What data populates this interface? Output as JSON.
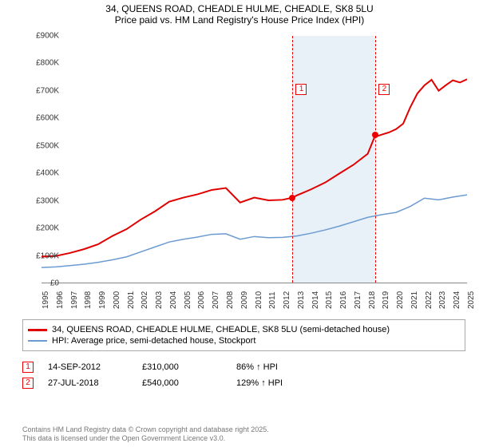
{
  "title_line1": "34, QUEENS ROAD, CHEADLE HULME, CHEADLE, SK8 5LU",
  "title_line2": "Price paid vs. HM Land Registry's House Price Index (HPI)",
  "chart": {
    "type": "line",
    "x_start_year": 1995,
    "x_end_year": 2025,
    "x_tick_years": [
      1995,
      1996,
      1997,
      1998,
      1999,
      2000,
      2001,
      2002,
      2003,
      2004,
      2005,
      2006,
      2007,
      2008,
      2009,
      2010,
      2011,
      2012,
      2013,
      2014,
      2015,
      2016,
      2017,
      2018,
      2019,
      2020,
      2021,
      2022,
      2023,
      2024,
      2025
    ],
    "y_min": 0,
    "y_max": 900,
    "y_ticks": [
      0,
      100,
      200,
      300,
      400,
      500,
      600,
      700,
      800,
      900
    ],
    "y_tick_labels": [
      "£0",
      "£100K",
      "£200K",
      "£300K",
      "£400K",
      "£500K",
      "£600K",
      "£700K",
      "£800K",
      "£900K"
    ],
    "background_color": "#ffffff",
    "shade_color": "#e8f0f8",
    "shade_from_year": 2012.7,
    "shade_to_year": 2018.55,
    "series": [
      {
        "id": "price_paid",
        "color": "#e00000",
        "width": 2,
        "label": "34, QUEENS ROAD, CHEADLE HULME, CHEADLE, SK8 5LU (semi-detached house)",
        "points": [
          [
            1995,
            95
          ],
          [
            1996,
            97
          ],
          [
            1997,
            108
          ],
          [
            1998,
            122
          ],
          [
            1999,
            140
          ],
          [
            2000,
            170
          ],
          [
            2001,
            195
          ],
          [
            2002,
            230
          ],
          [
            2003,
            260
          ],
          [
            2004,
            295
          ],
          [
            2005,
            310
          ],
          [
            2006,
            322
          ],
          [
            2007,
            338
          ],
          [
            2008,
            345
          ],
          [
            2009,
            292
          ],
          [
            2010,
            310
          ],
          [
            2011,
            300
          ],
          [
            2012,
            302
          ],
          [
            2012.7,
            310
          ],
          [
            2013,
            318
          ],
          [
            2014,
            340
          ],
          [
            2015,
            365
          ],
          [
            2016,
            398
          ],
          [
            2017,
            430
          ],
          [
            2018,
            470
          ],
          [
            2018.55,
            540
          ],
          [
            2018.7,
            535
          ],
          [
            2019,
            540
          ],
          [
            2019.5,
            548
          ],
          [
            2020,
            560
          ],
          [
            2020.5,
            580
          ],
          [
            2021,
            640
          ],
          [
            2021.5,
            690
          ],
          [
            2022,
            720
          ],
          [
            2022.5,
            740
          ],
          [
            2023,
            700
          ],
          [
            2023.5,
            720
          ],
          [
            2024,
            738
          ],
          [
            2024.5,
            730
          ],
          [
            2025,
            742
          ]
        ]
      },
      {
        "id": "hpi",
        "color": "#6b9bd1",
        "width": 1.5,
        "label": "HPI: Average price, semi-detached house, Stockport",
        "points": [
          [
            1995,
            55
          ],
          [
            1996,
            57
          ],
          [
            1997,
            62
          ],
          [
            1998,
            67
          ],
          [
            1999,
            74
          ],
          [
            2000,
            83
          ],
          [
            2001,
            94
          ],
          [
            2002,
            112
          ],
          [
            2003,
            130
          ],
          [
            2004,
            148
          ],
          [
            2005,
            158
          ],
          [
            2006,
            166
          ],
          [
            2007,
            176
          ],
          [
            2008,
            178
          ],
          [
            2009,
            158
          ],
          [
            2010,
            168
          ],
          [
            2011,
            164
          ],
          [
            2012,
            165
          ],
          [
            2013,
            170
          ],
          [
            2014,
            180
          ],
          [
            2015,
            192
          ],
          [
            2016,
            206
          ],
          [
            2017,
            222
          ],
          [
            2018,
            238
          ],
          [
            2019,
            248
          ],
          [
            2020,
            256
          ],
          [
            2021,
            278
          ],
          [
            2022,
            308
          ],
          [
            2023,
            302
          ],
          [
            2024,
            312
          ],
          [
            2025,
            320
          ]
        ]
      }
    ],
    "sale_markers": [
      {
        "num": "1",
        "year": 2012.7,
        "value": 310,
        "label_y": 60
      },
      {
        "num": "2",
        "year": 2018.55,
        "value": 540,
        "label_y": 60
      }
    ]
  },
  "sales": [
    {
      "num": "1",
      "date": "14-SEP-2012",
      "price": "£310,000",
      "vs_hpi": "86% ↑ HPI"
    },
    {
      "num": "2",
      "date": "27-JUL-2018",
      "price": "£540,000",
      "vs_hpi": "129% ↑ HPI"
    }
  ],
  "footer_line1": "Contains HM Land Registry data © Crown copyright and database right 2025.",
  "footer_line2": "This data is licensed under the Open Government Licence v3.0."
}
